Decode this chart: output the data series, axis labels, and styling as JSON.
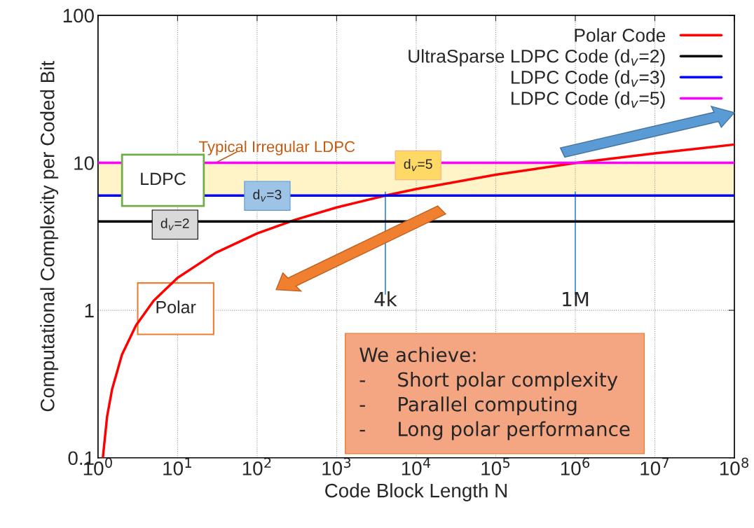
{
  "chart_data": {
    "type": "line",
    "xlabel": "Code Block Length N",
    "ylabel": "Computational Complexity per Coded Bit",
    "log": "xy",
    "xlim": [
      1,
      100000000
    ],
    "ylim": [
      0.1,
      100
    ],
    "xticks": [
      {
        "value": 1,
        "label": "10$^{0}$"
      },
      {
        "value": 10,
        "label": "10$^{1}$"
      },
      {
        "value": 100,
        "label": "10$^{2}$"
      },
      {
        "value": 1000,
        "label": "10$^{3}$"
      },
      {
        "value": 10000,
        "label": "10$^{4}$"
      },
      {
        "value": 100000,
        "label": "10$^{5}$"
      },
      {
        "value": 1000000,
        "label": "10$^{6}$"
      },
      {
        "value": 10000000,
        "label": "10$^{7}$"
      },
      {
        "value": 100000000,
        "label": "10$^{8}$"
      }
    ],
    "yticks": [
      0.1,
      1,
      10,
      100
    ],
    "grid": true,
    "legend": "top right",
    "line_style": "solid",
    "marker": "none",
    "series": [
      {
        "name": "Polar Code",
        "color": "#ff0000",
        "x": [
          1.15,
          1.3,
          1.5,
          2,
          3,
          5,
          10,
          30,
          100,
          300,
          1000,
          4096,
          10000,
          100000,
          1000000,
          10000000,
          100000000
        ],
        "values": [
          0.1,
          0.19,
          0.29,
          0.5,
          0.79,
          1.16,
          1.66,
          2.45,
          3.32,
          4.11,
          4.98,
          6,
          6.64,
          8.3,
          9.97,
          11.6,
          13.3
        ]
      },
      {
        "name": "UltraSparse LDPC Code (d$_{v}$=2)",
        "color": "#000000",
        "x": [
          1,
          100000000
        ],
        "values": [
          4,
          4
        ]
      },
      {
        "name": "LDPC Code (d$_{v}$=3)",
        "color": "#0000ff",
        "x": [
          1,
          100000000
        ],
        "values": [
          6,
          6
        ]
      },
      {
        "name": "LDPC Code (d$_{v}$=5)",
        "color": "#ff00ff",
        "x": [
          1,
          100000000
        ],
        "values": [
          10,
          10
        ]
      }
    ],
    "bands": [
      {
        "axis": "y",
        "from": 6,
        "to": 10,
        "label": "Typical Irregular LDPC",
        "color": "#fff3c8"
      }
    ],
    "ref_lines": [
      {
        "axis": "x",
        "value": 4096,
        "label": "4k",
        "color": "#5b9bd5"
      },
      {
        "axis": "x",
        "value": 1000000,
        "label": "1M",
        "color": "#5b9bd5"
      }
    ],
    "annotations": [
      "LDPC",
      "Polar",
      "d$_{v}$=2",
      "d$_{v}$=3",
      "d$_{v}$=5",
      "We achieve:\n-     Short polar complexity\n-     Parallel computing\n-     Long polar performance"
    ]
  }
}
